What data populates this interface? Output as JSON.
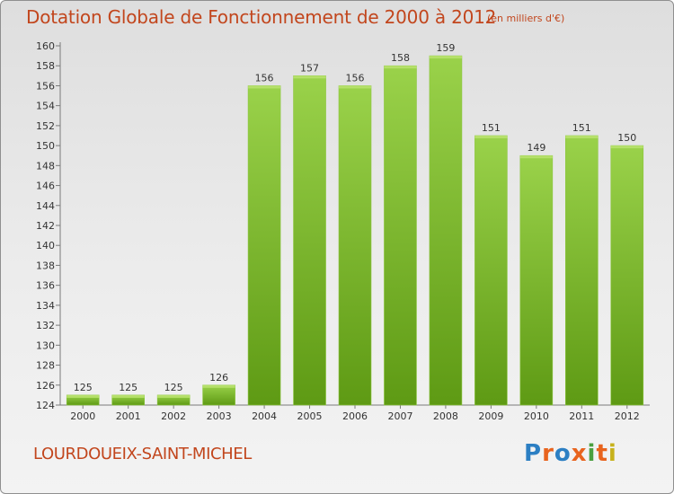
{
  "header": {
    "title": "Dotation Globale de Fonctionnement de 2000 à 2012",
    "subtitle": "(en milliers d'€)"
  },
  "footer": {
    "commune": "LOURDOUEIX-SAINT-MICHEL",
    "logo_text": "Proxiti",
    "logo_colors": [
      "#2c7fc3",
      "#e8641e",
      "#2c7fc3",
      "#e8641e",
      "#4aa03f",
      "#e8641e",
      "#c7b21c"
    ]
  },
  "colors": {
    "text_accent": "#c2461d",
    "bar_light": "#9ad24a",
    "bar_dark": "#5e9a14"
  },
  "chart_data": {
    "type": "bar",
    "categories": [
      "2000",
      "2001",
      "2002",
      "2003",
      "2004",
      "2005",
      "2006",
      "2007",
      "2008",
      "2009",
      "2010",
      "2011",
      "2012"
    ],
    "values": [
      125,
      125,
      125,
      126,
      156,
      157,
      156,
      158,
      159,
      151,
      149,
      151,
      150
    ],
    "ylim": [
      124,
      160
    ],
    "yticks": [
      124,
      126,
      128,
      130,
      132,
      134,
      136,
      138,
      140,
      142,
      144,
      146,
      148,
      150,
      152,
      154,
      156,
      158,
      160
    ],
    "grid": false,
    "data_labels": true
  }
}
